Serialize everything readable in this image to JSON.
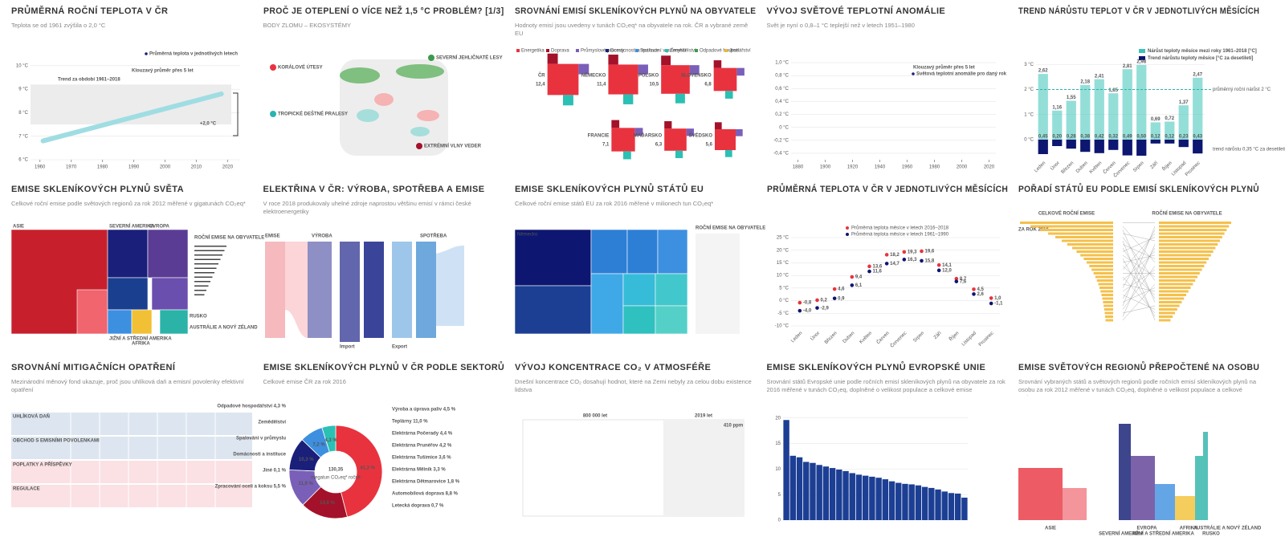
{
  "cards": [
    {
      "title": "PRŮMĚRNÁ ROČNÍ TEPLOTA V ČR",
      "subtitle": "Teplota se od 1961 zvýšila o 2,0 °C",
      "legend": [
        "Průměrná teplota v jednotlivých letech",
        "Klouzavý průměr přes 5 let",
        "Trend za období 1961–2018"
      ],
      "annotation": "+2,0 °C",
      "xlim": [
        1957,
        2024
      ],
      "xticks": [
        1960,
        1970,
        1980,
        1990,
        2000,
        2010,
        2020
      ],
      "ylim": [
        6,
        10.2
      ],
      "yticks": [
        {
          "value": 10,
          "label": "10 °C"
        },
        {
          "value": 9,
          "label": "9 °C"
        },
        {
          "value": 8,
          "label": "8 °C"
        },
        {
          "value": 7,
          "label": "7 °C"
        },
        {
          "value": 6,
          "label": "6 °C"
        }
      ],
      "trend": {
        "x": [
          1961,
          2018
        ],
        "y": [
          6.8,
          8.8
        ]
      }
    },
    {
      "title": "PROČ JE OTEPLENÍ O VÍCE NEŽ 1,5 °C PROBLÉM? [1/3]",
      "subtitle": "BODY ZLOMU – EKOSYSTÉMY",
      "labels": [
        "KORÁLOVÉ ÚTESY",
        "TROPICKÉ DEŠTNÉ PRALESY",
        "SEVERNÍ JEHLIČNATÉ LESY",
        "EXTRÉMNÍ VLNY VEDER"
      ]
    },
    {
      "title": "SROVNÁNÍ EMISÍ SKLENÍKOVÝCH PLYNŮ NA OBYVATELE",
      "subtitle": "Hodnoty emisí jsou uvedeny v tunách CO₂eq* na obyvatele na rok. ČR a vybrané země EU",
      "legend": [
        {
          "name": "Energetika",
          "color": "#e8333f"
        },
        {
          "name": "Doprava",
          "color": "#a3122a"
        },
        {
          "name": "Průmyslové procesy",
          "color": "#7a5fb8"
        },
        {
          "name": "Domácnosti a instituce",
          "color": "#1a1f7a"
        },
        {
          "name": "Spalování v průmyslu",
          "color": "#3d8fe0"
        },
        {
          "name": "Zemědělství",
          "color": "#2bc0b4"
        },
        {
          "name": "Odpadové hospodářství",
          "color": "#3a9b4c"
        },
        {
          "name": "Jiné",
          "color": "#f2b632"
        }
      ],
      "categories": [
        "ČR",
        "NĚMECKO",
        "POLSKO",
        "SLOVENSKO",
        "FRANCIE",
        "MAĎARSKO",
        "ŠVÉDSKO"
      ],
      "values": [
        12.4,
        11.4,
        10.5,
        6.8,
        7.1,
        6.3,
        5.6
      ],
      "value_labels": [
        "12,4",
        "11,4",
        "10,5",
        "6,8",
        "7,1",
        "6,3",
        "5,6"
      ]
    },
    {
      "title": "VÝVOJ SVĚTOVÉ TEPLOTNÍ ANOMÁLIE",
      "subtitle": "Svět je nyní o 0,8–1 °C teplejší než v letech 1951–1980",
      "legend": [
        "Světová teplotní anomálie pro daný rok",
        "Klouzavý průměr přes 5 let"
      ],
      "xlim": [
        1875,
        2025
      ],
      "xticks": [
        1880,
        1900,
        1920,
        1940,
        1960,
        1980,
        2000,
        2020
      ],
      "ylim": [
        -0.5,
        1.05
      ],
      "yticks": [
        {
          "value": 1,
          "label": "1,0 °C"
        },
        {
          "value": 0.8,
          "label": "0,8 °C"
        },
        {
          "value": 0.6,
          "label": "0,6 °C"
        },
        {
          "value": 0.4,
          "label": "0,4 °C"
        },
        {
          "value": 0.2,
          "label": "0,2 °C"
        },
        {
          "value": 0,
          "label": "0 °C"
        },
        {
          "value": -0.2,
          "label": "-0,2 °C"
        },
        {
          "value": -0.4,
          "label": "-0,4 °C"
        }
      ]
    },
    {
      "title": "TREND NÁRŮSTU TEPLOT V ČR V JEDNOTLIVÝCH MĚSÍCÍCH",
      "categories": [
        "Leden",
        "Únor",
        "Březen",
        "Duben",
        "Květen",
        "Červen",
        "Červenec",
        "Srpen",
        "Září",
        "Říjen",
        "Listopad",
        "Prosinec"
      ],
      "series": [
        {
          "name": "Nárůst teploty měsíce mezi roky 1961–2018 [°C]",
          "color": "#3cc3b8",
          "values": [
            2.62,
            1.16,
            1.55,
            2.18,
            2.41,
            1.85,
            2.81,
            2.98,
            0.69,
            0.72,
            1.37,
            2.47
          ],
          "value_labels": [
            "2,62",
            "1,16",
            "1,55",
            "2,18",
            "2,41",
            "1,85",
            "2,81",
            "2,98",
            "0,69",
            "0,72",
            "1,37",
            "2,47"
          ]
        },
        {
          "name": "Trend nárůstu teploty měsíce [°C za desetiletí]",
          "color": "#0d1670",
          "values": [
            0.45,
            0.2,
            0.28,
            0.38,
            0.42,
            0.32,
            0.49,
            0.5,
            0.12,
            0.12,
            0.23,
            0.43
          ],
          "value_labels": [
            "0,45",
            "0,20",
            "0,28",
            "0,38",
            "0,42",
            "0,32",
            "0,49",
            "0,50",
            "0,12",
            "0,12",
            "0,23",
            "0,43"
          ]
        }
      ],
      "ylim": [
        0,
        3.2
      ],
      "yticks": [
        {
          "value": 0,
          "label": "0 °C"
        },
        {
          "value": 1,
          "label": "1 °C"
        },
        {
          "value": 2,
          "label": "2 °C"
        },
        {
          "value": 3,
          "label": "3 °C"
        }
      ],
      "annotations": [
        "průměrný roční nárůst 2 °C",
        "trend nárůstu 0,35 °C za desetiletí"
      ]
    },
    {
      "title": "EMISE SKLENÍKOVÝCH PLYNŮ SVĚTA",
      "subtitle": "Celkové roční emise podle světových regionů za rok 2012 měřené v gigatunách CO₂eq*",
      "labels": [
        "ASIE",
        "SEVERNÍ AMERIKA",
        "EVROPA",
        "JIŽNÍ A STŘEDNÍ AMERIKA",
        "AFRIKA",
        "RUSKO",
        "AUSTRÁLIE A NOVÝ ZÉLAND"
      ],
      "side_title": "ROČNÍ EMISE NA OBYVATELE"
    },
    {
      "title": "ELEKTŘINA V ČR: VÝROBA, SPOTŘEBA A EMISE",
      "subtitle": "V roce 2018 produkovaly uhelné zdroje naprostou většinu emisí v rámci české elektroenergetiky",
      "labels": [
        "EMISE",
        "VÝROBA",
        "SPOTŘEBA",
        "Import",
        "Export"
      ]
    },
    {
      "title": "EMISE SKLENÍKOVÝCH PLYNŮ STÁTŮ EU",
      "subtitle": "Celkové roční emise států EU za rok 2016 měřené v milionech tun CO₂eq*",
      "labels": [
        "Německo",
        "ROČNÍ EMISE NA OBYVATELE"
      ]
    },
    {
      "title": "PRŮMĚRNÁ TEPLOTA V ČR V JEDNOTLIVÝCH MĚSÍCÍCH",
      "categories": [
        "Leden",
        "Únor",
        "Březen",
        "Duben",
        "Květen",
        "Červen",
        "Červenec",
        "Srpen",
        "Září",
        "Říjen",
        "Listopad",
        "Prosinec"
      ],
      "series": [
        {
          "name": "Průměrná teplota měsíce v letech 2016–2018",
          "color": "#e8333f",
          "values": [
            -0.8,
            0.2,
            4.6,
            9.4,
            13.6,
            18.2,
            19.3,
            19.6,
            14.1,
            8.7,
            4.5,
            1.0
          ],
          "value_labels": [
            "-0,8",
            "0,2",
            "4,6",
            "9,4",
            "13,6",
            "18,2",
            "19,3",
            "19,6",
            "14,1",
            "8,7",
            "4,5",
            "1,0"
          ]
        },
        {
          "name": "Průměrná teplota měsíce v letech 1961–1990",
          "color": "#0d1670",
          "values": [
            -4.0,
            -2.9,
            0.9,
            6.1,
            11.6,
            14.7,
            16.3,
            15.8,
            12.0,
            7.6,
            2.6,
            -1.1
          ],
          "value_labels": [
            "-4,0",
            "-2,9",
            "0,9",
            "6,1",
            "11,6",
            "14,7",
            "16,3",
            "15,8",
            "12,0",
            "7,6",
            "2,6",
            "-1,1"
          ]
        }
      ],
      "ylim": [
        -10,
        25
      ],
      "yticks": [
        {
          "value": 25,
          "label": "25 °C"
        },
        {
          "value": 20,
          "label": "20 °C"
        },
        {
          "value": 15,
          "label": "15 °C"
        },
        {
          "value": 10,
          "label": "10 °C"
        },
        {
          "value": 5,
          "label": "5 °C"
        },
        {
          "value": 0,
          "label": "0 °C"
        },
        {
          "value": -5,
          "label": "-5 °C"
        },
        {
          "value": -10,
          "label": "-10 °C"
        }
      ]
    },
    {
      "title": "POŘADÍ STÁTŮ EU PODLE EMISÍ SKLENÍKOVÝCH PLYNŮ",
      "note": "ZA ROK 2016",
      "labels": [
        "CELKOVÉ ROČNÍ EMISE",
        "ROČNÍ EMISE NA OBYVATELE"
      ]
    },
    {
      "title": "SROVNÁNÍ MITIGAČNÍCH OPATŘENÍ",
      "subtitle": "Mezinárodní měnový fond ukazuje, proč jsou uhlíková daň a emisní povolenky efektivní opatření",
      "rows": [
        "UHLÍKOVÁ DAŇ",
        "OBCHOD S EMISNÍMI POVOLENKAMI",
        "POPLATKY A PŘÍSPĚVKY",
        "REGULACE"
      ]
    },
    {
      "title": "EMISE SKLENÍKOVÝCH PLYNŮ V ČR PODLE SEKTORŮ",
      "subtitle": "Celkové emise ČR za rok 2016",
      "center": "130,35",
      "center_unit": "megatun CO₂eq* ročně",
      "values": [
        41.3,
        14.8,
        11.9,
        10.3,
        7.2,
        4.3
      ],
      "value_labels": [
        "41,3 %",
        "14,8 %",
        "11,9 %",
        "10,3 %",
        "7,2 %",
        "4,3 %"
      ],
      "colors": [
        "#e8333f",
        "#a3122a",
        "#7a5fb8",
        "#1a1f7a",
        "#3d8fe0",
        "#2bc0b4"
      ],
      "right_labels": [
        "Výroba a úprava paliv 4,5 %",
        "Teplárny 11,0 %",
        "Elektrárna Počerady 4,4 %",
        "Elektrárna Prunéřov 4,2 %",
        "Elektrárna Tušimice 3,6 %",
        "Elektrárna Mělník 3,3 %",
        "Elektrárna Dětmarovice 1,8 %",
        "Automobilová doprava 8,8 %",
        "Letecká doprava 0,7 %"
      ],
      "left_labels": [
        "Odpadové hospodářství 4,3 %",
        "Zemědělství",
        "Spalování v průmyslu",
        "Domácnosti a instituce",
        "Jiné 0,1 %",
        "Zpracování oceli a koksu 5,5 %"
      ]
    },
    {
      "title": "VÝVOJ KONCENTRACE CO₂ V ATMOSFÉŘE",
      "subtitle": "Dnešní koncentrace CO₂ dosahují hodnot, které na Zemi nebyly za celou dobu existence lidstva",
      "labels": [
        "800 000 let",
        "2019 let",
        "410 ppm"
      ]
    },
    {
      "title": "EMISE SKLENÍKOVÝCH PLYNŮ EVROPSKÉ UNIE",
      "subtitle": "Srovnání států Evropské unie podle ročních emisí skleníkových plynů na obyvatele za rok 2016 měřené v tunách CO₂eq, doplněné o velikost populace a celkové emise",
      "values": [
        19.6,
        12.6,
        12.3,
        11.4,
        11.2,
        10.8,
        10.5,
        10.2,
        9.9,
        9.6,
        9.2,
        8.9,
        8.7,
        8.5,
        8.3,
        8.0,
        7.6,
        7.3,
        7.1,
        7.0,
        6.8,
        6.5,
        6.3,
        6.0,
        5.6,
        5.3,
        5.2,
        4.4
      ],
      "color": "#1c3f94",
      "ylim": [
        0,
        22
      ],
      "yticks": [
        0,
        5,
        10,
        15,
        20
      ]
    },
    {
      "title": "EMISE SVĚTOVÝCH REGIONŮ PŘEPOČTENÉ NA OSOBU",
      "subtitle": "Srovnání vybraných států a světových regionů podle ročních emisí skleníkových plynů na osobu za rok 2012 měřené v tunách CO₂eq, doplněné o velikost populace a celkové emise",
      "labels": [
        "ASIE",
        "SEVERNÍ AMERIKA",
        "EVROPA",
        "JIŽNÍ A STŘEDNÍ AMERIKA",
        "AFRIKA",
        "RUSKO",
        "AUSTRÁLIE A NOVÝ ZÉLAND"
      ]
    }
  ]
}
